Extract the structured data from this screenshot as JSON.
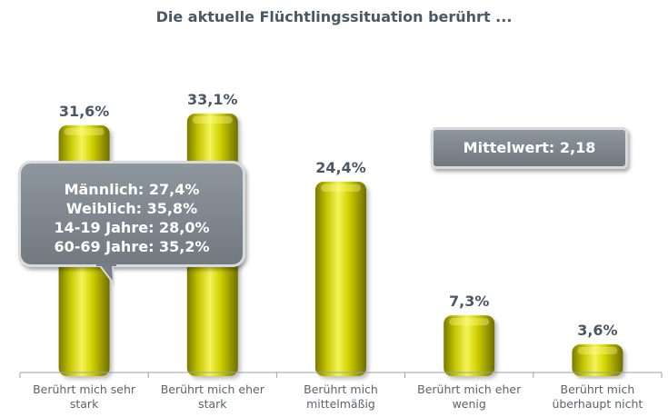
{
  "chart_data": {
    "type": "bar",
    "title": "Die aktuelle Flüchtlingssituation berührt ...",
    "categories": [
      "Berührt mich sehr stark",
      "Berührt mich eher stark",
      "Berührt mich mittelmäßig",
      "Berührt mich eher wenig",
      "Berührt mich überhaupt nicht"
    ],
    "values": [
      31.6,
      33.1,
      24.4,
      7.3,
      3.6
    ],
    "value_labels": [
      "31,6%",
      "33,1%",
      "24,4%",
      "7,3%",
      "3,6%"
    ],
    "ylim": [
      0,
      35
    ],
    "bar_color": "#c8c800",
    "grid": false
  },
  "callout": {
    "lines": [
      "Männlich: 27,4%",
      "Weiblich: 35,8%",
      "14-19 Jahre: 28,0%",
      "60-69 Jahre: 35,2%"
    ]
  },
  "mean_box": {
    "label": "Mittelwert: 2,18"
  }
}
